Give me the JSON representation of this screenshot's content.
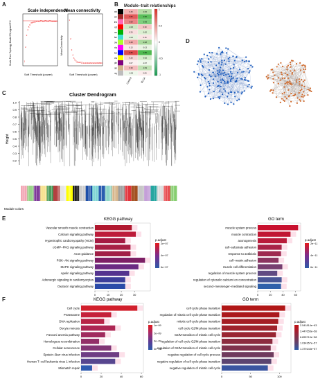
{
  "panels": {
    "A": "A",
    "B": "B",
    "C": "C",
    "D": "D",
    "E": "E",
    "F": "F"
  },
  "panelA": {
    "left_title": "Scale independence",
    "left_ylabel": "Scale Free Topology Model Fit,signed R^2",
    "left_xlabel": "Soft Threshold (power)",
    "right_title": "Mean connectivity",
    "right_ylabel": "Mean Connectivity",
    "right_xlabel": "Soft Threshold (power)"
  },
  "panelB": {
    "title": "Module–trait relationships",
    "cols": [
      "Control",
      "BLCA"
    ],
    "modules": [
      {
        "name": "black",
        "color": "#000000",
        "vals": [
          "0.45",
          "-0.45"
        ],
        "fill": [
          "#f2b2b2",
          "#b7dca7"
        ]
      },
      {
        "name": "brown",
        "color": "#a52a2a",
        "vals": [
          "0.82",
          "-0.82"
        ],
        "fill": [
          "#e25a5a",
          "#5bbf5b"
        ]
      },
      {
        "name": "pink",
        "color": "#ff69b4",
        "vals": [
          "0.69",
          "-0.69"
        ],
        "fill": [
          "#ea8686",
          "#7fcf7f"
        ]
      },
      {
        "name": "red",
        "color": "#ff0000",
        "vals": [
          "-0.30",
          "0.30"
        ],
        "fill": [
          "#cfe8c3",
          "#f5c7c7"
        ]
      },
      {
        "name": "green",
        "color": "#00b000",
        "vals": [
          "0.20",
          "-0.20"
        ],
        "fill": [
          "#f8dede",
          "#dbefd1"
        ]
      },
      {
        "name": "turquoise",
        "color": "#40e0d0",
        "vals": [
          "-0.16",
          "0.16"
        ],
        "fill": [
          "#e4f2de",
          "#fae5e5"
        ]
      },
      {
        "name": "greenyellow",
        "color": "#adff2f",
        "vals": [
          "0.48",
          "-0.48"
        ],
        "fill": [
          "#f1aaaa",
          "#abd99d"
        ]
      },
      {
        "name": "magenta",
        "color": "#ff00ff",
        "vals": [
          "0.13",
          "-0.13"
        ],
        "fill": [
          "#fae8e8",
          "#e8f4e2"
        ]
      },
      {
        "name": "blue",
        "color": "#0000ff",
        "vals": [
          "0.85",
          "-0.85"
        ],
        "fill": [
          "#de4c4c",
          "#4fb94f"
        ]
      },
      {
        "name": "yellow",
        "color": "#ffff00",
        "vals": [
          "0.25",
          "-0.25"
        ],
        "fill": [
          "#f6d4d4",
          "#d4ecc9"
        ]
      },
      {
        "name": "purple",
        "color": "#800080",
        "vals": [
          "0.07",
          "-0.07"
        ],
        "fill": [
          "#fbf0f0",
          "#f0f8ec"
        ]
      },
      {
        "name": "tan",
        "color": "#d2b48c",
        "vals": [
          "0.39",
          "-0.39"
        ],
        "fill": [
          "#f3bcbc",
          "#c0e1b3"
        ]
      },
      {
        "name": "grey",
        "color": "#bdbdbd",
        "vals": [
          "-0.09",
          "0.09"
        ],
        "fill": [
          "#eef7eb",
          "#fbecec"
        ]
      }
    ],
    "scale": [
      "1",
      "0.5",
      "0",
      "-0.5",
      "-1"
    ]
  },
  "panelC": {
    "title": "Cluster Dendrogram",
    "ylabel": "Height",
    "yticks": [
      "1.0",
      "0.9",
      "0.8",
      "0.7",
      "0.6",
      "0.5",
      "0.4",
      "0.3",
      "0.2"
    ],
    "module_label": "Module colors",
    "module_colors": [
      "#f2a6b4",
      "#9ad48a",
      "#7f3b9a",
      "#f6e08c",
      "#4b9c5c",
      "#b34040",
      "#e6e6e6",
      "#ffff00",
      "#222222",
      "#cccccc",
      "#1d4fa8",
      "#7fd5d4",
      "#2a5db0",
      "#8fd6c8",
      "#d7b68c",
      "#9e9e9e",
      "#e3343d",
      "#a35020",
      "#c7c7c7",
      "#c4a0d8",
      "#25a6a0",
      "#dddddd",
      "#e84e52",
      "#86ce6f"
    ]
  },
  "panelE": {
    "kegg_title": "KEGG pathway",
    "go_title": "GO term",
    "legend_title": "p.adjust",
    "kegg_legend": [
      "2e−07",
      "4e−07",
      "6e−07"
    ],
    "go_legend": [
      "2e−11",
      "4e−11",
      "6e−11"
    ],
    "kegg_terms": [
      "Vascular smooth muscle contraction",
      "Calcium signaling pathway",
      "Hypertrophic cardiomyopathy (HCM)",
      "cGMP−PKG signaling pathway",
      "Axon guidance",
      "PI3K−Akt signaling pathway",
      "MAPK signaling pathway",
      "Apelin signaling pathway",
      "Adrenergic signaling in cardiomyocytes",
      "Oxytocin signaling pathway"
    ],
    "kegg_values": [
      28,
      31,
      23,
      27,
      27,
      38,
      33,
      26,
      23,
      23
    ],
    "kegg_colors": [
      "#b0182f",
      "#bd1c3a",
      "#a51a42",
      "#a82045",
      "#a12046",
      "#7d1f65",
      "#6b2a82",
      "#54338f",
      "#3c3e9a",
      "#2b4ba8"
    ],
    "kegg_ticks": [
      "0",
      "10",
      "20",
      "30"
    ],
    "go_terms": [
      "muscle system process",
      "muscle contraction",
      "axonogenesis",
      "cell−substrate adhesion",
      "response to antibiotic",
      "cell−matrix adhesion",
      "muscle cell differentiation",
      "regulation of muscle system process",
      "regulation of cytosolic calcium ion concentration",
      "second−messenger−mediated signaling"
    ],
    "go_values": [
      64,
      52,
      46,
      38,
      37,
      33,
      39,
      31,
      38,
      37
    ],
    "go_colors": [
      "#c8102e",
      "#c11733",
      "#b91c3a",
      "#a92447",
      "#9e2a50",
      "#8b3560",
      "#773f70",
      "#604a82",
      "#485596",
      "#2f60aa"
    ],
    "go_ticks": [
      "0",
      "20",
      "40",
      "60"
    ]
  },
  "panelF": {
    "kegg_title": "KEGG pathway",
    "go_title": "GO term",
    "legend_title": "p.adjust",
    "kegg_legend": [
      "1e−09",
      "2e−09",
      "3e−09",
      "4e−09"
    ],
    "go_legend": [
      "2.541814e−63",
      "3.447655e−58",
      "6.895710e−58",
      "1.034357e−57",
      "1.379143e−57"
    ],
    "kegg_terms": [
      "Cell cycle",
      "Proteasome",
      "DNA replication",
      "Oocyte meiosis",
      "Fanconi anemia pathway",
      "Homologous recombination",
      "Cellular senescence",
      "Epstein−Barr virus infection",
      "Human T−cell leukemia virus 1 infection",
      "Mismatch repair"
    ],
    "kegg_values": [
      56,
      30,
      23,
      34,
      24,
      18,
      30,
      38,
      34,
      11
    ],
    "kegg_colors": [
      "#d11f2c",
      "#c5213a",
      "#b82447",
      "#ad2653",
      "#a02a5e",
      "#922f68",
      "#823575",
      "#6e3d84",
      "#57468f",
      "#2f5bb0"
    ],
    "kegg_ticks": [
      "0",
      "20",
      "40",
      "60"
    ],
    "go_terms": [
      "cell cycle phase transition",
      "regulation of mitotic cell cycle phase transition",
      "mitotic cell cycle phase transition",
      "cell cycle G2/M phase transition",
      "G2/M transition of mitotic cell cycle",
      "regulation of cell cycle G2/M phase transition",
      "regulation of G2/M transition of mitotic cell cycle",
      "negative regulation of cell cycle process",
      "negative regulation of cell cycle phase transition",
      "negative regulation of mitotic cell cycle"
    ],
    "go_values": [
      110,
      100,
      98,
      96,
      94,
      88,
      85,
      90,
      86,
      80
    ],
    "go_colors": [
      "#b01616",
      "#ab1a1d",
      "#a51e24",
      "#9f222b",
      "#992632",
      "#8c2c3f",
      "#7f324c",
      "#6f3a5d",
      "#5c4470",
      "#3a55a0"
    ],
    "go_ticks": [
      "0",
      "50",
      "100"
    ]
  }
}
